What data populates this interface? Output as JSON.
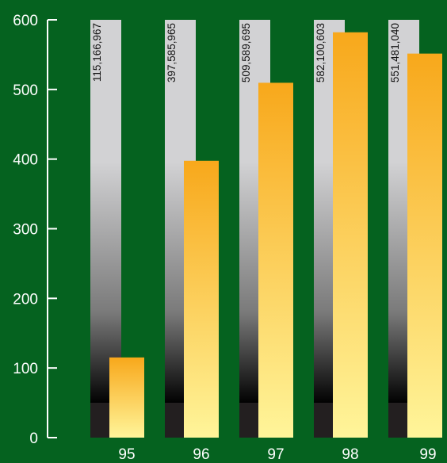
{
  "chart_data": {
    "type": "bar",
    "categories": [
      "95",
      "96",
      "97",
      "98",
      "99"
    ],
    "values": [
      115166967,
      397585965,
      509589695,
      582100603,
      551481040
    ],
    "data_labels": [
      "115,166,967",
      "397,585,965",
      "509,589,695",
      "582,100,603",
      "551,481,040"
    ],
    "y_ticks": [
      "0",
      "100",
      "200",
      "300",
      "400",
      "500",
      "600"
    ],
    "y_tick_values": [
      0,
      100,
      200,
      300,
      400,
      500,
      600
    ],
    "y_unit_multiplier": 1000000,
    "ylim": [
      0,
      600
    ],
    "title": "",
    "xlabel": "",
    "ylabel": "",
    "grid": false,
    "legend": "none",
    "colors": {
      "background": "#05621f",
      "bar_top": "#f8a81b",
      "bar_bottom": "#fff59a",
      "track_light": "#d2d2d4",
      "track_dark": "#000000",
      "track_base": "#231f20",
      "axis": "#ffffff",
      "text": "#ffffff"
    }
  }
}
